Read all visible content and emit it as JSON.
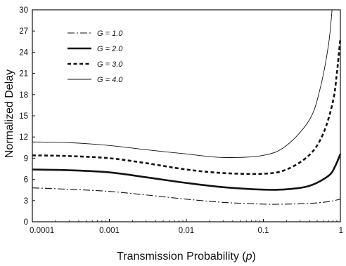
{
  "chart_data": {
    "type": "line",
    "xlabel": "Transmission Probability (p)",
    "xlabel_parts": [
      "Transmission Probability (",
      "p",
      ")"
    ],
    "ylabel": "Normalized Delay",
    "x_scale": "log",
    "xlim": [
      0.0001,
      1
    ],
    "ylim": [
      0,
      30
    ],
    "grid": false,
    "legend_position": "top-left",
    "x_ticks": [
      {
        "value": 0.0001,
        "label": "0.0001"
      },
      {
        "value": 0.001,
        "label": "0.001"
      },
      {
        "value": 0.01,
        "label": "0.01"
      },
      {
        "value": 0.1,
        "label": "0.1"
      },
      {
        "value": 1,
        "label": "1"
      }
    ],
    "y_ticks": [
      {
        "value": 0,
        "label": "0"
      },
      {
        "value": 3,
        "label": "3"
      },
      {
        "value": 6,
        "label": "6"
      },
      {
        "value": 9,
        "label": "9"
      },
      {
        "value": 12,
        "label": "12"
      },
      {
        "value": 15,
        "label": "15"
      },
      {
        "value": 18,
        "label": "18"
      },
      {
        "value": 21,
        "label": "21"
      },
      {
        "value": 24,
        "label": "24"
      },
      {
        "value": 27,
        "label": "27"
      },
      {
        "value": 30,
        "label": "30"
      }
    ],
    "series": [
      {
        "name": "G = 1.0",
        "style": "dash-dot",
        "points": [
          [
            0.0001,
            4.8
          ],
          [
            0.0003,
            4.6
          ],
          [
            0.001,
            4.3
          ],
          [
            0.003,
            3.8
          ],
          [
            0.01,
            3.2
          ],
          [
            0.03,
            2.75
          ],
          [
            0.1,
            2.5
          ],
          [
            0.2,
            2.5
          ],
          [
            0.4,
            2.6
          ],
          [
            0.7,
            2.85
          ],
          [
            1.0,
            3.2
          ]
        ]
      },
      {
        "name": "G = 2.0",
        "style": "solid-thick",
        "points": [
          [
            0.0001,
            7.4
          ],
          [
            0.0003,
            7.3
          ],
          [
            0.001,
            7.0
          ],
          [
            0.003,
            6.3
          ],
          [
            0.01,
            5.5
          ],
          [
            0.03,
            4.9
          ],
          [
            0.1,
            4.55
          ],
          [
            0.2,
            4.6
          ],
          [
            0.4,
            5.1
          ],
          [
            0.7,
            6.5
          ],
          [
            0.85,
            7.8
          ],
          [
            1.0,
            9.6
          ]
        ]
      },
      {
        "name": "G = 3.0",
        "style": "dashed-thick",
        "points": [
          [
            0.0001,
            9.4
          ],
          [
            0.0003,
            9.3
          ],
          [
            0.001,
            9.0
          ],
          [
            0.003,
            8.3
          ],
          [
            0.01,
            7.4
          ],
          [
            0.03,
            6.9
          ],
          [
            0.1,
            6.8
          ],
          [
            0.2,
            7.4
          ],
          [
            0.4,
            9.5
          ],
          [
            0.6,
            12.5
          ],
          [
            0.8,
            17.0
          ],
          [
            0.9,
            21.0
          ],
          [
            1.0,
            26.0
          ]
        ]
      },
      {
        "name": "G = 4.0",
        "style": "thin-solid",
        "points": [
          [
            0.0001,
            11.3
          ],
          [
            0.0003,
            11.2
          ],
          [
            0.001,
            10.8
          ],
          [
            0.003,
            10.2
          ],
          [
            0.01,
            9.6
          ],
          [
            0.03,
            9.1
          ],
          [
            0.1,
            9.4
          ],
          [
            0.2,
            10.8
          ],
          [
            0.4,
            14.5
          ],
          [
            0.55,
            19.0
          ],
          [
            0.7,
            25.0
          ],
          [
            0.78,
            30.0
          ]
        ]
      }
    ],
    "legend_labels": [
      {
        "prefix": "G = ",
        "value": "1.0"
      },
      {
        "prefix": "G = ",
        "value": "2.0"
      },
      {
        "prefix": "G = ",
        "value": "3.0"
      },
      {
        "prefix": "G = ",
        "value": "4.0"
      }
    ]
  }
}
